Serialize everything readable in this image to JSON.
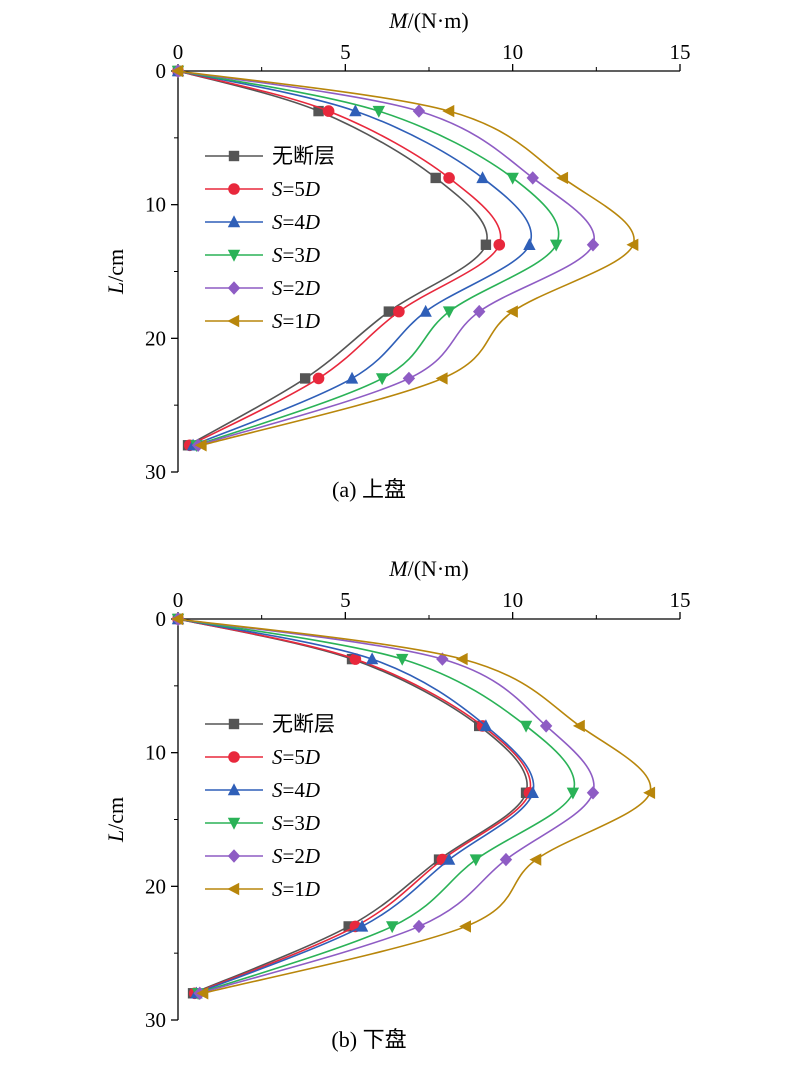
{
  "chart_data": [
    {
      "type": "line",
      "caption": "(a) 上盘",
      "xlabel": "M/(N·m)",
      "ylabel": "L/cm",
      "xlim": [
        0,
        15
      ],
      "ylim": [
        0,
        30
      ],
      "y_inverted": true,
      "x_axis_position": "top",
      "xticks": [
        0,
        5,
        10,
        15
      ],
      "yticks": [
        0,
        10,
        20,
        30
      ],
      "grid": false,
      "legend_position": "left-middle",
      "y": [
        0,
        3,
        8,
        13,
        18,
        23,
        28
      ],
      "series": [
        {
          "name": "无断层",
          "marker": "square",
          "color": "#555555",
          "x": [
            0,
            4.2,
            7.7,
            9.2,
            6.3,
            3.8,
            0.3
          ]
        },
        {
          "name": "S=5D",
          "marker": "circle",
          "color": "#e8283c",
          "x": [
            0,
            4.5,
            8.1,
            9.6,
            6.6,
            4.2,
            0.35
          ]
        },
        {
          "name": "S=4D",
          "marker": "triangle-up",
          "color": "#2f5fb8",
          "x": [
            0,
            5.3,
            9.1,
            10.5,
            7.4,
            5.2,
            0.45
          ]
        },
        {
          "name": "S=3D",
          "marker": "triangle-down",
          "color": "#2ab257",
          "x": [
            0,
            6.0,
            10.0,
            11.3,
            8.1,
            6.1,
            0.55
          ]
        },
        {
          "name": "S=2D",
          "marker": "diamond",
          "color": "#8e5cc4",
          "x": [
            0,
            7.2,
            10.6,
            12.4,
            9.0,
            6.9,
            0.6
          ]
        },
        {
          "name": "S=1D",
          "marker": "triangle-left",
          "color": "#b8860b",
          "x": [
            0,
            8.1,
            11.5,
            13.6,
            10.0,
            7.9,
            0.7
          ]
        }
      ]
    },
    {
      "type": "line",
      "caption": "(b) 下盘",
      "xlabel": "M/(N·m)",
      "ylabel": "L/cm",
      "xlim": [
        0,
        15
      ],
      "ylim": [
        0,
        30
      ],
      "y_inverted": true,
      "x_axis_position": "top",
      "xticks": [
        0,
        5,
        10,
        15
      ],
      "yticks": [
        0,
        10,
        20,
        30
      ],
      "grid": false,
      "legend_position": "left-middle",
      "y": [
        0,
        3,
        8,
        13,
        18,
        23,
        28
      ],
      "series": [
        {
          "name": "无断层",
          "marker": "square",
          "color": "#555555",
          "x": [
            0,
            5.2,
            9.0,
            10.4,
            7.8,
            5.1,
            0.45
          ]
        },
        {
          "name": "S=5D",
          "marker": "circle",
          "color": "#e8283c",
          "x": [
            0,
            5.3,
            9.1,
            10.5,
            7.9,
            5.3,
            0.5
          ]
        },
        {
          "name": "S=4D",
          "marker": "triangle-up",
          "color": "#2f5fb8",
          "x": [
            0,
            5.8,
            9.2,
            10.6,
            8.1,
            5.5,
            0.55
          ]
        },
        {
          "name": "S=3D",
          "marker": "triangle-down",
          "color": "#2ab257",
          "x": [
            0,
            6.7,
            10.4,
            11.8,
            8.9,
            6.4,
            0.6
          ]
        },
        {
          "name": "S=2D",
          "marker": "diamond",
          "color": "#8e5cc4",
          "x": [
            0,
            7.9,
            11.0,
            12.4,
            9.8,
            7.2,
            0.65
          ]
        },
        {
          "name": "S=1D",
          "marker": "triangle-left",
          "color": "#b8860b",
          "x": [
            0,
            8.5,
            12.0,
            14.1,
            10.7,
            8.6,
            0.75
          ]
        }
      ]
    }
  ]
}
